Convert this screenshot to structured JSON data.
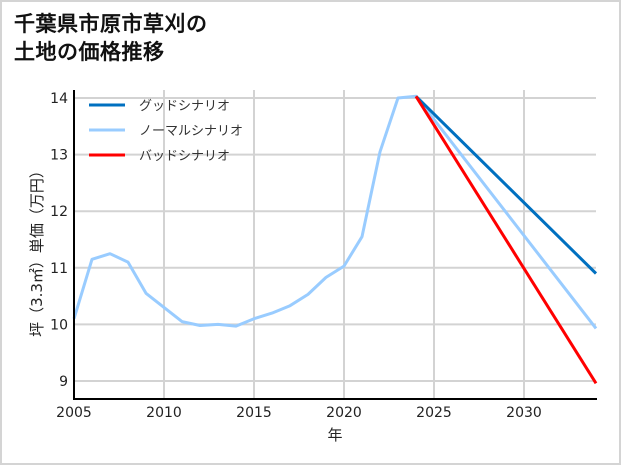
{
  "title": {
    "line1": "千葉県市原市草刈の",
    "line2": "土地の価格推移"
  },
  "chart_data": {
    "type": "line",
    "title": "千葉県市原市草刈の土地の価格推移",
    "xlabel": "年",
    "ylabel": "坪（3.3㎡）単価（万円）",
    "xlim": [
      2005,
      2034
    ],
    "ylim": [
      8.7,
      14.3
    ],
    "x_ticks": [
      2005,
      2010,
      2015,
      2020,
      2025,
      2030
    ],
    "y_ticks": [
      9,
      10,
      11,
      12,
      13,
      14
    ],
    "grid": true,
    "legend_position": "upper left",
    "series": [
      {
        "name": "グッドシナリオ",
        "color": "#0070c0",
        "x": [
          2024,
          2034
        ],
        "values": [
          14.03,
          10.9
        ]
      },
      {
        "name": "ノーマルシナリオ",
        "color": "#99ccff",
        "x": [
          2005,
          2006,
          2007,
          2008,
          2009,
          2010,
          2011,
          2012,
          2013,
          2014,
          2015,
          2016,
          2017,
          2018,
          2019,
          2020,
          2021,
          2022,
          2023,
          2024,
          2034
        ],
        "values": [
          10.1,
          11.15,
          11.25,
          11.1,
          10.55,
          10.3,
          10.05,
          9.98,
          10.0,
          9.97,
          10.1,
          10.2,
          10.33,
          10.53,
          10.83,
          11.03,
          11.55,
          13.05,
          14.0,
          14.03,
          9.93
        ]
      },
      {
        "name": "バッドシナリオ",
        "color": "#ff0000",
        "x": [
          2024,
          2034
        ],
        "values": [
          14.03,
          8.96
        ]
      }
    ]
  },
  "axes": {
    "x_ticks": [
      "2005",
      "2010",
      "2015",
      "2020",
      "2025",
      "2030"
    ],
    "y_ticks": [
      "9",
      "10",
      "11",
      "12",
      "13",
      "14"
    ],
    "xlabel": "年",
    "ylabel": "坪（3.3㎡）単価（万円）"
  },
  "legend": [
    {
      "label": "グッドシナリオ",
      "color": "#0070c0"
    },
    {
      "label": "ノーマルシナリオ",
      "color": "#99ccff"
    },
    {
      "label": "バッドシナリオ",
      "color": "#ff0000"
    }
  ]
}
